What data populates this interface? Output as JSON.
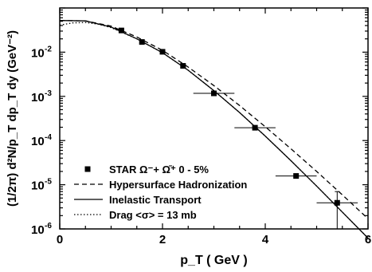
{
  "chart_data": {
    "type": "scatter",
    "title": "",
    "xlabel": "p_T ( GeV )",
    "ylabel": "(1/2π) d²N/p_T dp_T dy  (GeV⁻²)",
    "xlim": [
      0,
      6
    ],
    "ylim": [
      1e-06,
      0.1
    ],
    "yscale": "log",
    "grid": false,
    "legend_position": "bottom-left",
    "x_ticks": [
      "0",
      "2",
      "4",
      "6"
    ],
    "y_ticks": [
      {
        "base": "10",
        "exp": "-6"
      },
      {
        "base": "10",
        "exp": "-5"
      },
      {
        "base": "10",
        "exp": "-4"
      },
      {
        "base": "10",
        "exp": "-3"
      },
      {
        "base": "10",
        "exp": "-2"
      }
    ],
    "series": [
      {
        "name": "STAR Ω⁻+ Ω̄⁺  0 - 5%",
        "kind": "markers",
        "x": [
          1.2,
          1.6,
          2.0,
          2.4,
          3.0,
          3.8,
          4.6,
          5.4
        ],
        "y": [
          0.031,
          0.017,
          0.0102,
          0.0049,
          0.00117,
          0.000195,
          1.58e-05,
          3.9e-06
        ],
        "x_err": [
          0.0,
          0.0,
          0.0,
          0.0,
          0.4,
          0.4,
          0.4,
          0.4
        ],
        "y_err_low": [
          0,
          0,
          0,
          0,
          0,
          0,
          0,
          2.9e-06
        ],
        "y_err_high": [
          0,
          0,
          0,
          0,
          0,
          0,
          0,
          3.1e-06
        ]
      },
      {
        "name": "Hypersurface Hadronization",
        "kind": "dashed",
        "x": [
          0,
          0.5,
          1.0,
          1.5,
          2.0,
          2.5,
          3.0,
          3.5,
          4.0,
          4.5,
          5.0,
          5.5,
          6.0
        ],
        "y": [
          0.052,
          0.051,
          0.039,
          0.022,
          0.011,
          0.0046,
          0.00175,
          0.00062,
          0.000205,
          6.5e-05,
          2e-05,
          5.9e-06,
          1.7e-06
        ]
      },
      {
        "name": "Inelastic Transport",
        "kind": "solid",
        "x": [
          0,
          0.5,
          1.0,
          1.5,
          2.0,
          2.5,
          3.0,
          3.5,
          4.0,
          4.5,
          5.0,
          5.5,
          6.0
        ],
        "y": [
          0.052,
          0.051,
          0.037,
          0.02,
          0.0097,
          0.0039,
          0.00135,
          0.00043,
          0.000126,
          3.5e-05,
          9.3e-06,
          2.4e-06,
          6.2e-07
        ]
      },
      {
        "name": "Drag <σ> = 13 mb",
        "kind": "dotted",
        "x": [
          0,
          0.25,
          0.5,
          0.75,
          1.0,
          1.5,
          2.0,
          2.5,
          3.0,
          3.5,
          4.0,
          4.5,
          5.0,
          5.5,
          6.0
        ],
        "y": [
          0.041,
          0.046,
          0.047,
          0.043,
          0.036,
          0.02,
          0.0097,
          0.0039,
          0.00135,
          0.00043,
          0.000126,
          3.5e-05,
          9.3e-06,
          2.4e-06,
          6.2e-07
        ]
      }
    ]
  }
}
